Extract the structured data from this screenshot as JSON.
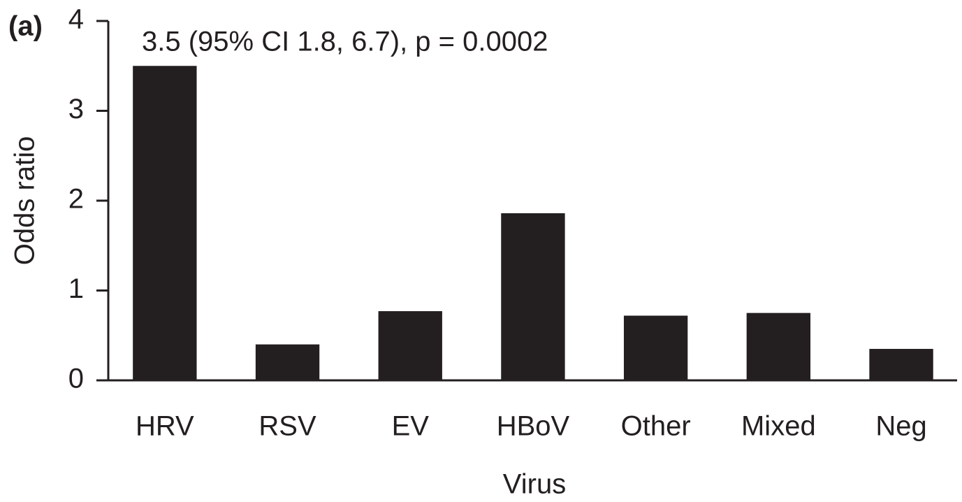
{
  "chart_data": {
    "type": "bar",
    "panel_label": "(a)",
    "annotation": "3.5 (95% CI 1.8, 6.7), p = 0.0002",
    "x_label": "Virus",
    "y_label": "Odds ratio",
    "categories": [
      "HRV",
      "RSV",
      "EV",
      "HBoV",
      "Other",
      "Mixed",
      "Neg"
    ],
    "values": [
      3.5,
      0.4,
      0.77,
      1.86,
      0.72,
      0.75,
      0.35
    ],
    "color": "#231f20",
    "ylim": [
      0,
      4
    ],
    "yticks": [
      0,
      1,
      2,
      3,
      4
    ],
    "grid": false
  }
}
